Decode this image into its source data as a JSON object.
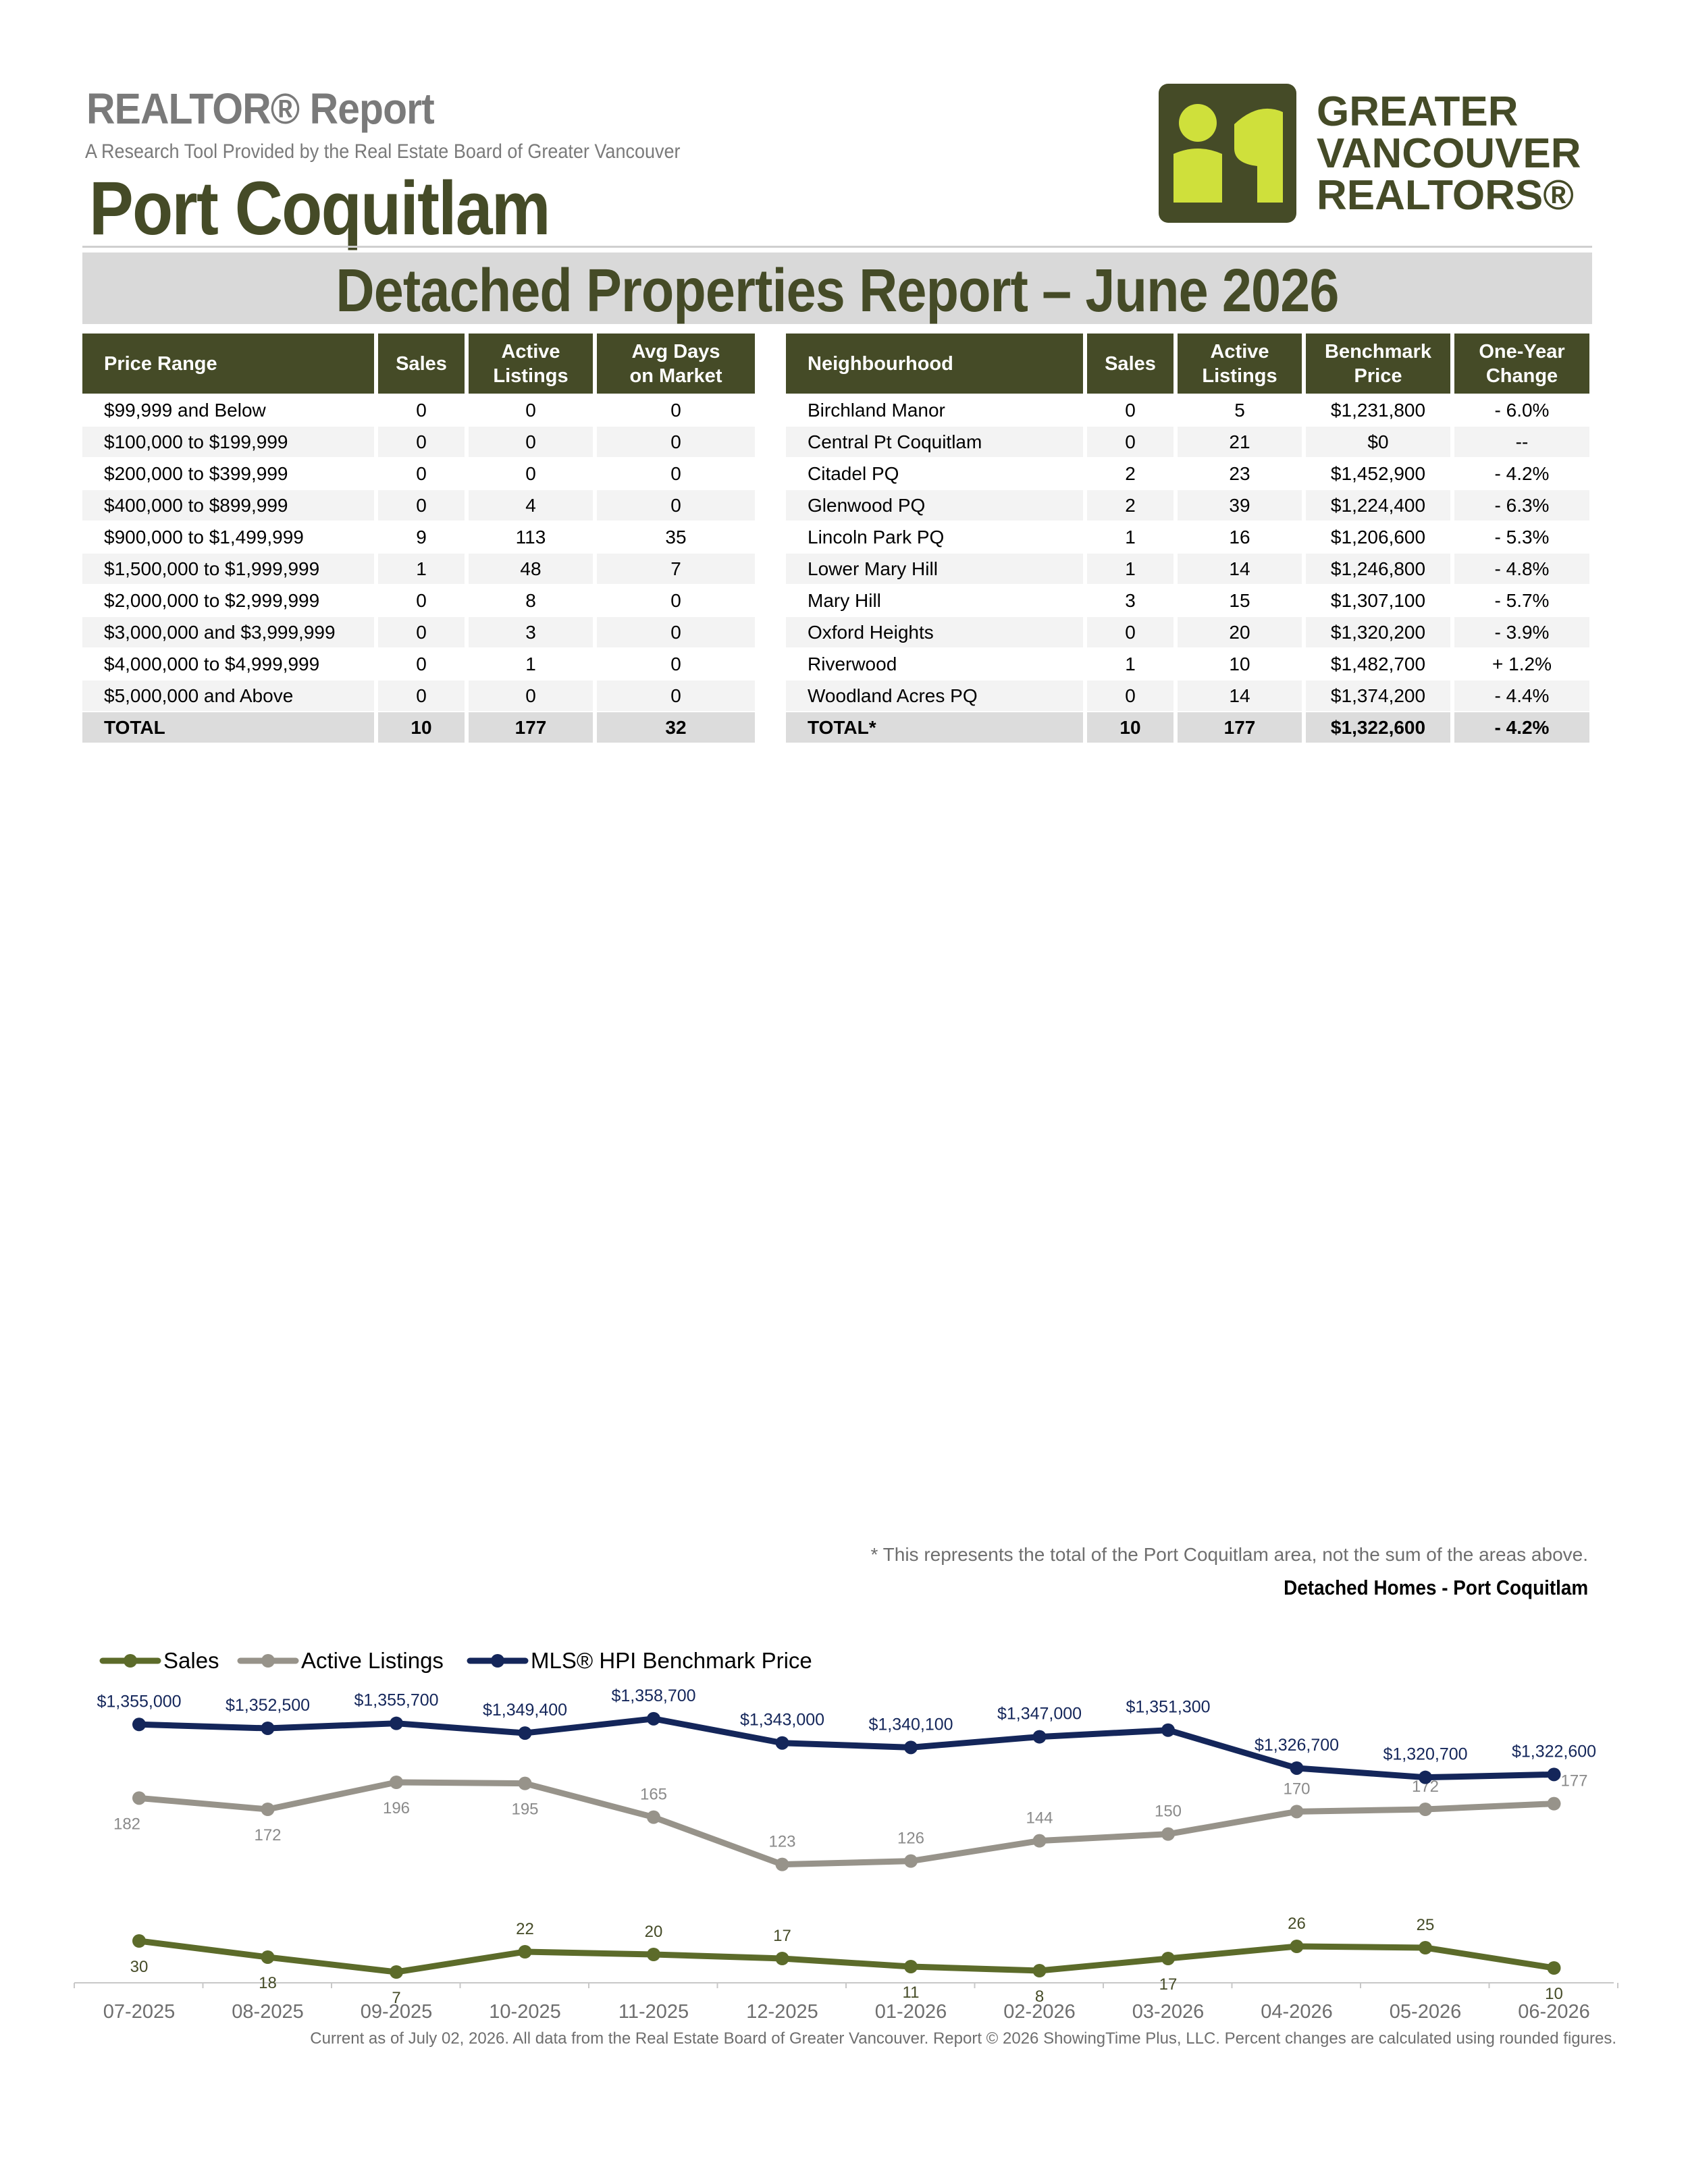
{
  "header": {
    "kicker": "REALTOR® Report",
    "subtitle": "A Research Tool Provided by the Real Estate Board of Greater Vancouver",
    "area": "Port Coquitlam",
    "report_title": "Detached Properties Report – June 2026",
    "logo_lines": [
      "GREATER",
      "VANCOUVER",
      "REALTORS®"
    ],
    "logo_color": "#454b27",
    "logo_accent": "#cfe03b"
  },
  "price_table": {
    "headers": [
      "Price Range",
      "Sales",
      "Active Listings",
      "Avg Days on Market"
    ],
    "rows": [
      [
        "$99,999 and Below",
        "0",
        "0",
        "0"
      ],
      [
        "$100,000 to $199,999",
        "0",
        "0",
        "0"
      ],
      [
        "$200,000 to $399,999",
        "0",
        "0",
        "0"
      ],
      [
        "$400,000 to $899,999",
        "0",
        "4",
        "0"
      ],
      [
        "$900,000 to $1,499,999",
        "9",
        "113",
        "35"
      ],
      [
        "$1,500,000 to $1,999,999",
        "1",
        "48",
        "7"
      ],
      [
        "$2,000,000 to $2,999,999",
        "0",
        "8",
        "0"
      ],
      [
        "$3,000,000 and $3,999,999",
        "0",
        "3",
        "0"
      ],
      [
        "$4,000,000 to $4,999,999",
        "0",
        "1",
        "0"
      ],
      [
        "$5,000,000 and Above",
        "0",
        "0",
        "0"
      ]
    ],
    "total": [
      "TOTAL",
      "10",
      "177",
      "32"
    ]
  },
  "neighbourhood_table": {
    "headers": [
      "Neighbourhood",
      "Sales",
      "Active Listings",
      "Benchmark Price",
      "One-Year Change"
    ],
    "rows": [
      [
        "Birchland Manor",
        "0",
        "5",
        "$1,231,800",
        "- 6.0%"
      ],
      [
        "Central Pt Coquitlam",
        "0",
        "21",
        "$0",
        "--"
      ],
      [
        "Citadel PQ",
        "2",
        "23",
        "$1,452,900",
        "- 4.2%"
      ],
      [
        "Glenwood PQ",
        "2",
        "39",
        "$1,224,400",
        "- 6.3%"
      ],
      [
        "Lincoln Park PQ",
        "1",
        "16",
        "$1,206,600",
        "- 5.3%"
      ],
      [
        "Lower Mary Hill",
        "1",
        "14",
        "$1,246,800",
        "- 4.8%"
      ],
      [
        "Mary Hill",
        "3",
        "15",
        "$1,307,100",
        "- 5.7%"
      ],
      [
        "Oxford Heights",
        "0",
        "20",
        "$1,320,200",
        "- 3.9%"
      ],
      [
        "Riverwood",
        "1",
        "10",
        "$1,482,700",
        "+ 1.2%"
      ],
      [
        "Woodland Acres PQ",
        "0",
        "14",
        "$1,374,200",
        "- 4.4%"
      ]
    ],
    "total": [
      "TOTAL*",
      "10",
      "177",
      "$1,322,600",
      "- 4.2%"
    ]
  },
  "footnote": "* This represents the total of the Port Coquitlam area, not the sum of the areas above.",
  "chart_caption": "Detached Homes - Port Coquitlam",
  "footer": "Current as of July 02, 2026. All data from the Real Estate Board of Greater Vancouver.  Report © 2026 ShowingTime Plus, LLC. Percent changes are calculated using rounded figures.",
  "chart_data": {
    "type": "line",
    "x": [
      "07-2025",
      "08-2025",
      "09-2025",
      "10-2025",
      "11-2025",
      "12-2025",
      "01-2026",
      "02-2026",
      "03-2026",
      "04-2026",
      "05-2026",
      "06-2026"
    ],
    "legend_position": "top-left",
    "grid": false,
    "series": [
      {
        "name": "Sales",
        "color": "#5c6b2a",
        "values": [
          30,
          18,
          7,
          22,
          20,
          17,
          11,
          8,
          17,
          26,
          25,
          10
        ],
        "labels": [
          "30",
          "18",
          "7",
          "22",
          "20",
          "17",
          "11",
          "8",
          "17",
          "26",
          "25",
          "10"
        ]
      },
      {
        "name": "Active Listings",
        "color": "#97938a",
        "values": [
          182,
          172,
          196,
          195,
          165,
          123,
          126,
          144,
          150,
          170,
          172,
          177
        ],
        "labels": [
          "182",
          "172",
          "196",
          "195",
          "165",
          "123",
          "126",
          "144",
          "150",
          "170",
          "172",
          "177"
        ]
      },
      {
        "name": "MLS® HPI Benchmark Price",
        "color": "#14265a",
        "values": [
          1355000,
          1352500,
          1355700,
          1349400,
          1358700,
          1343000,
          1340100,
          1347000,
          1351300,
          1326700,
          1320700,
          1322600
        ],
        "labels": [
          "$1,355,000",
          "$1,352,500",
          "$1,355,700",
          "$1,349,400",
          "$1,358,700",
          "$1,343,000",
          "$1,340,100",
          "$1,347,000",
          "$1,351,300",
          "$1,326,700",
          "$1,320,700",
          "$1,322,600"
        ]
      }
    ]
  }
}
